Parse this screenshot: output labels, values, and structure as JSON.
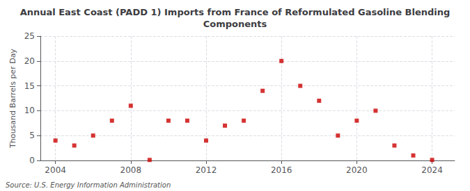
{
  "chart_data": {
    "type": "scatter",
    "title": "Annual East Coast (PADD 1) Imports from France of Reformulated Gasoline Blending\nComponents",
    "ylabel": "Thousand Barrels per Day",
    "source": "Source: U.S. Energy Information Administration",
    "x": [
      2004,
      2005,
      2006,
      2007,
      2008,
      2009,
      2010,
      2011,
      2012,
      2013,
      2014,
      2015,
      2016,
      2017,
      2018,
      2019,
      2020,
      2021,
      2022,
      2023,
      2024
    ],
    "values": [
      4,
      3,
      5,
      8,
      11,
      0.1,
      8,
      8,
      4,
      7,
      8,
      14,
      20,
      15,
      12,
      5,
      8,
      10,
      3,
      1,
      0.1
    ],
    "color": "#cc0000",
    "marker": "square",
    "grid": true,
    "xlim": [
      2003.2,
      2025.2
    ],
    "xticks": [
      2004,
      2008,
      2012,
      2016,
      2020,
      2024
    ],
    "ylim": [
      0,
      25
    ],
    "yticks": [
      0,
      5,
      10,
      15,
      20,
      25
    ]
  }
}
